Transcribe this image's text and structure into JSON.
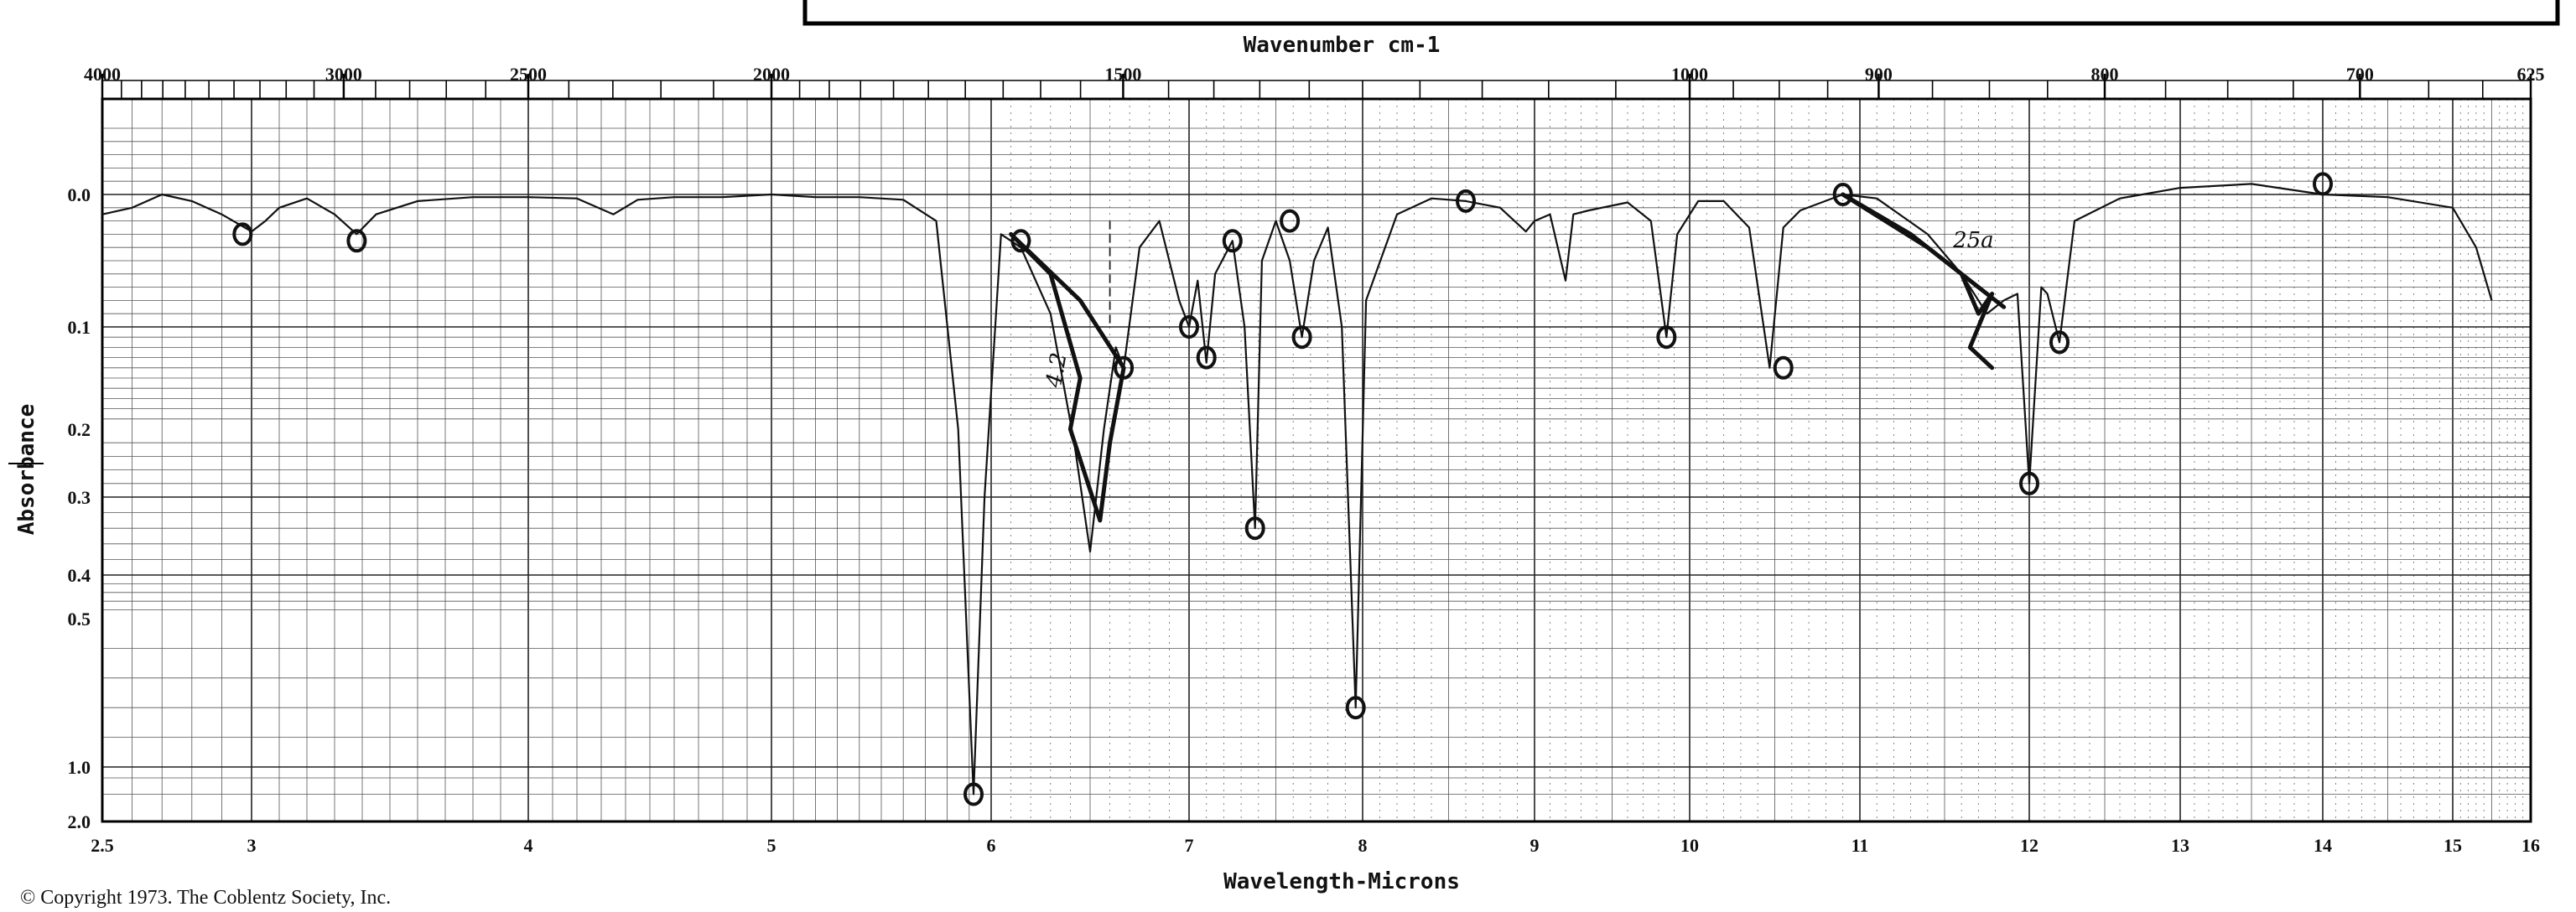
{
  "chart_data": {
    "type": "line",
    "title": "",
    "top_axis_label": "Wavenumber cm-1",
    "xlabel": "Wavelength-Microns",
    "ylabel": "Absorbance",
    "xlim": [
      2.5,
      16
    ],
    "top_ticks": [
      {
        "label": "4000",
        "um": 2.5
      },
      {
        "label": "3000",
        "um": 3.333
      },
      {
        "label": "2500",
        "um": 4.0
      },
      {
        "label": "2000",
        "um": 5.0
      },
      {
        "label": "1500",
        "um": 6.667
      },
      {
        "label": "1000",
        "um": 10.0
      },
      {
        "label": "900",
        "um": 11.111
      },
      {
        "label": "800",
        "um": 12.5
      },
      {
        "label": "700",
        "um": 14.286
      },
      {
        "label": "625",
        "um": 16.0
      }
    ],
    "bottom_ticks": [
      "2.5",
      "3",
      "4",
      "5",
      "6",
      "7",
      "8",
      "9",
      "10",
      "11",
      "12",
      "13",
      "14",
      "15",
      "16"
    ],
    "y_ticks": [
      "0.0",
      "0.1",
      "0.2",
      "0.3",
      "0.4",
      "0.5",
      "1.0",
      "2.0"
    ],
    "grid": true,
    "series": [
      {
        "name": "",
        "x": [
          2.5,
          2.6,
          2.7,
          2.8,
          2.9,
          3.0,
          3.05,
          3.1,
          3.2,
          3.3,
          3.38,
          3.45,
          3.6,
          3.8,
          4.0,
          4.2,
          4.35,
          4.45,
          4.6,
          4.8,
          5.0,
          5.2,
          5.4,
          5.6,
          5.75,
          5.85,
          5.92,
          5.97,
          6.05,
          6.15,
          6.3,
          6.42,
          6.5,
          6.57,
          6.63,
          6.67,
          6.75,
          6.85,
          6.95,
          7.0,
          7.05,
          7.1,
          7.15,
          7.25,
          7.32,
          7.38,
          7.42,
          7.5,
          7.58,
          7.65,
          7.72,
          7.8,
          7.88,
          7.96,
          8.02,
          8.2,
          8.4,
          8.6,
          8.8,
          8.95,
          9.0,
          9.1,
          9.2,
          9.25,
          9.35,
          9.6,
          9.75,
          9.85,
          9.92,
          10.05,
          10.2,
          10.35,
          10.47,
          10.55,
          10.65,
          10.9,
          11.1,
          11.4,
          11.6,
          11.75,
          11.85,
          11.93,
          12.0,
          12.08,
          12.12,
          12.2,
          12.3,
          12.6,
          13.0,
          13.5,
          14.0,
          14.5,
          15.0,
          15.3,
          15.5
        ],
        "y": [
          0.015,
          0.01,
          0.0,
          0.005,
          0.015,
          0.028,
          0.02,
          0.01,
          0.003,
          0.015,
          0.03,
          0.015,
          0.005,
          0.002,
          0.002,
          0.003,
          0.015,
          0.004,
          0.002,
          0.002,
          0.0,
          0.002,
          0.002,
          0.004,
          0.02,
          0.2,
          1.5,
          0.3,
          0.03,
          0.04,
          0.09,
          0.22,
          0.37,
          0.2,
          0.12,
          0.14,
          0.04,
          0.02,
          0.08,
          0.1,
          0.065,
          0.135,
          0.06,
          0.035,
          0.1,
          0.34,
          0.05,
          0.02,
          0.05,
          0.11,
          0.05,
          0.025,
          0.1,
          0.8,
          0.08,
          0.015,
          0.003,
          0.005,
          0.01,
          0.028,
          0.02,
          0.015,
          0.065,
          0.015,
          0.012,
          0.006,
          0.02,
          0.11,
          0.03,
          0.005,
          0.005,
          0.025,
          0.14,
          0.025,
          0.012,
          0.0,
          0.003,
          0.03,
          0.06,
          0.09,
          0.08,
          0.075,
          0.28,
          0.07,
          0.075,
          0.115,
          0.02,
          0.003,
          -0.005,
          -0.008,
          0.0,
          0.002,
          0.01,
          0.04,
          0.08
        ]
      }
    ],
    "annotations": [
      {
        "text": "4.2",
        "x": 6.35,
        "y": 0.16
      },
      {
        "text": "25a",
        "x": 11.55,
        "y": 0.04
      }
    ]
  },
  "footer": {
    "copyright": "© Copyright 1973. The Coblentz Society, Inc."
  },
  "colors": {
    "ink": "#111111",
    "paper": "#ffffff"
  }
}
